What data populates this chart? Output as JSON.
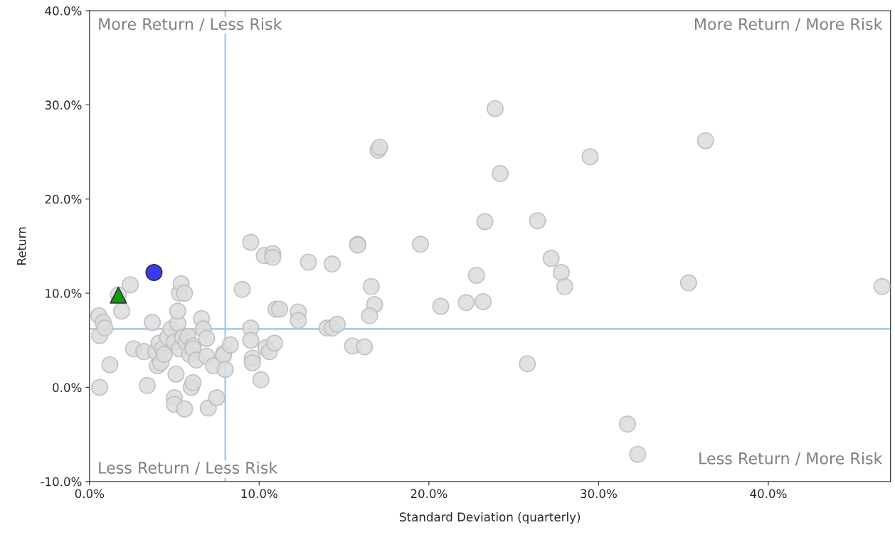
{
  "chart_data": {
    "type": "scatter",
    "xlabel": "Standard Deviation (quarterly)",
    "ylabel": "Return",
    "xlim": [
      0,
      47.2
    ],
    "ylim": [
      -10,
      40
    ],
    "xticks": [
      {
        "value": 0,
        "label": "0.0%"
      },
      {
        "value": 10,
        "label": "10.0%"
      },
      {
        "value": 20,
        "label": "20.0%"
      },
      {
        "value": 30,
        "label": "30.0%"
      },
      {
        "value": 40,
        "label": "40.0%"
      }
    ],
    "yticks": [
      {
        "value": -10,
        "label": "-10.0%"
      },
      {
        "value": 0,
        "label": "0.0%"
      },
      {
        "value": 10,
        "label": "10.0%"
      },
      {
        "value": 20,
        "label": "20.0%"
      },
      {
        "value": 30,
        "label": "30.0%"
      },
      {
        "value": 40,
        "label": "40.0%"
      }
    ],
    "grid": false,
    "series": [
      {
        "color": "#dcdcdc",
        "marker": "circle",
        "x": [
          0.6,
          0.6,
          0.55,
          0.8,
          0.9,
          1.2,
          1.9,
          2.4,
          2.6,
          3.2,
          3.4,
          3.7,
          3.9,
          4.0,
          4.1,
          4.2,
          4.3,
          4.4,
          4.6,
          4.8,
          5.0,
          5.0,
          5.0,
          5.1,
          5.2,
          5.2,
          5.3,
          5.3,
          5.4,
          5.6,
          5.5,
          5.6,
          5.7,
          5.8,
          5.9,
          6.0,
          6.1,
          6.1,
          6.1,
          6.3,
          6.6,
          6.7,
          6.9,
          6.9,
          7.0,
          7.3,
          7.5,
          7.9,
          7.9,
          8.0,
          8.3,
          9.0,
          9.5,
          9.5,
          9.5,
          9.6,
          9.6,
          10.1,
          10.3,
          10.4,
          10.6,
          10.8,
          10.8,
          10.9,
          11.0,
          11.2,
          12.3,
          12.3,
          12.9,
          14.0,
          14.3,
          14.3,
          14.6,
          15.5,
          15.8,
          15.8,
          16.2,
          16.6,
          16.8,
          16.5,
          17.0,
          17.1,
          19.5,
          20.7,
          22.2,
          22.8,
          23.2,
          23.3,
          23.9,
          24.2,
          25.8,
          26.4,
          27.2,
          27.8,
          28.0,
          29.5,
          31.7,
          32.3,
          35.3,
          36.3,
          46.7,
          1.7
        ],
        "values": [
          0.0,
          5.5,
          7.6,
          6.9,
          6.3,
          2.4,
          8.1,
          10.9,
          4.1,
          3.8,
          0.2,
          6.9,
          3.8,
          2.3,
          4.7,
          2.6,
          4.1,
          3.5,
          5.3,
          6.2,
          -1.1,
          -1.8,
          4.8,
          1.4,
          6.8,
          8.1,
          4.1,
          10.0,
          11.0,
          10.0,
          5.3,
          -2.3,
          4.8,
          5.4,
          3.5,
          0.0,
          0.5,
          4.4,
          4.1,
          2.9,
          7.3,
          6.2,
          5.2,
          3.3,
          -2.2,
          2.3,
          -1.1,
          3.6,
          3.4,
          1.9,
          4.5,
          10.4,
          15.4,
          6.3,
          5.0,
          3.1,
          2.6,
          0.8,
          14.0,
          4.2,
          3.8,
          14.2,
          13.8,
          4.7,
          8.3,
          8.3,
          8.0,
          7.1,
          13.3,
          6.3,
          6.3,
          13.1,
          6.7,
          4.4,
          15.2,
          15.1,
          4.3,
          10.7,
          8.8,
          7.6,
          25.2,
          25.5,
          15.2,
          8.6,
          9.0,
          11.9,
          9.1,
          17.6,
          29.6,
          22.7,
          2.5,
          17.7,
          13.7,
          12.2,
          10.7,
          24.5,
          -3.9,
          -7.1,
          11.1,
          26.2,
          10.7,
          9.8
        ]
      },
      {
        "color": "#3a3af0",
        "marker": "circle",
        "x": [
          3.8
        ],
        "values": [
          12.2
        ]
      },
      {
        "color": "#119911",
        "marker": "triangle",
        "x": [
          1.7
        ],
        "values": [
          9.8
        ]
      }
    ],
    "ref_lines": [
      {
        "axis": "x",
        "value": 8.0,
        "color": "#8fc3f0"
      },
      {
        "axis": "y",
        "value": 6.2,
        "color": "#8fc3f0"
      }
    ],
    "annotations": [
      "More Return / Less Risk",
      "More Return / More Risk",
      "Less Return / Less Risk",
      "Less Return / More Risk"
    ]
  }
}
